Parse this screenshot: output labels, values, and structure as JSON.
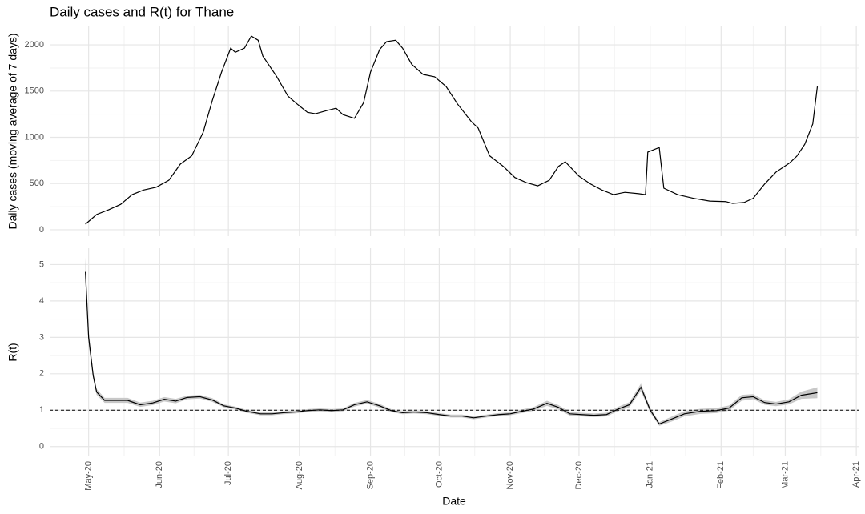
{
  "chart_data": [
    {
      "type": "line",
      "title": "Daily cases and R(t) for Thane",
      "ylabel": "Daily cases (moving average of 7 days)",
      "color": "#000000",
      "grid": true,
      "x": [
        -1.4,
        3.5,
        8.7,
        14,
        19,
        24,
        29.5,
        35,
        40,
        45,
        50,
        54,
        58,
        62,
        64,
        68,
        71,
        74,
        76,
        82,
        87,
        91,
        95.5,
        99,
        104,
        108,
        111,
        116,
        120,
        123,
        127,
        130,
        134,
        137,
        141,
        146,
        151,
        156,
        161,
        167,
        170,
        175,
        181,
        186,
        191,
        196,
        201,
        205,
        208,
        214,
        219,
        224,
        229,
        234,
        240,
        243,
        244,
        249,
        251,
        257,
        264,
        271,
        278,
        281,
        286,
        290,
        295,
        300,
        306,
        309,
        312.5,
        316,
        318
      ],
      "values": [
        60,
        165,
        215,
        275,
        380,
        430,
        460,
        535,
        710,
        800,
        1055,
        1400,
        1705,
        1965,
        1920,
        1965,
        2095,
        2050,
        1880,
        1660,
        1445,
        1360,
        1270,
        1255,
        1290,
        1315,
        1245,
        1205,
        1375,
        1705,
        1950,
        2035,
        2050,
        1965,
        1790,
        1680,
        1655,
        1550,
        1360,
        1170,
        1100,
        800,
        685,
        565,
        510,
        475,
        535,
        685,
        735,
        580,
        495,
        430,
        380,
        405,
        390,
        380,
        840,
        890,
        450,
        380,
        340,
        310,
        305,
        285,
        295,
        340,
        495,
        625,
        725,
        795,
        925,
        1145,
        1550
      ],
      "xlim": [
        -17,
        336
      ],
      "xticks": [
        0,
        31,
        61,
        92,
        123,
        153,
        184,
        214,
        245,
        276,
        304,
        335
      ],
      "ylim": [
        -70,
        2200
      ],
      "yticks": [
        0,
        500,
        1000,
        1500,
        2000
      ]
    },
    {
      "type": "line",
      "ylabel": "R(t)",
      "xlabel": "Date",
      "color": "#000000",
      "band_color": "#c8c8c8",
      "grid": true,
      "hline": 1,
      "x": [
        -1.4,
        0,
        2,
        3.5,
        7,
        12,
        17,
        22.5,
        28,
        33,
        38,
        43,
        48.6,
        54,
        59,
        64,
        69,
        75,
        80,
        85,
        90,
        95.5,
        101,
        106,
        111,
        116,
        121.5,
        127,
        132,
        137,
        142,
        147.6,
        153,
        158,
        163,
        168,
        173.6,
        179,
        184,
        189,
        194,
        200,
        205,
        210,
        215,
        220.5,
        226,
        231,
        236,
        241,
        245,
        249,
        255,
        260,
        267,
        274,
        279.5,
        285,
        290,
        295,
        300,
        305.6,
        311,
        318
      ],
      "values": [
        4.8,
        3.0,
        1.95,
        1.5,
        1.27,
        1.27,
        1.27,
        1.15,
        1.2,
        1.3,
        1.25,
        1.35,
        1.37,
        1.28,
        1.12,
        1.06,
        0.97,
        0.9,
        0.9,
        0.93,
        0.95,
        0.99,
        1.01,
        0.99,
        1.01,
        1.15,
        1.23,
        1.12,
        0.99,
        0.93,
        0.95,
        0.93,
        0.88,
        0.84,
        0.84,
        0.79,
        0.84,
        0.88,
        0.9,
        0.97,
        1.03,
        1.19,
        1.08,
        0.9,
        0.88,
        0.86,
        0.88,
        1.03,
        1.15,
        1.63,
        1.01,
        0.62,
        0.77,
        0.9,
        0.97,
        0.99,
        1.06,
        1.34,
        1.37,
        1.21,
        1.17,
        1.23,
        1.41,
        1.48
      ],
      "lower": [
        4.5,
        2.8,
        1.85,
        1.42,
        1.2,
        1.2,
        1.2,
        1.09,
        1.14,
        1.24,
        1.19,
        1.3,
        1.32,
        1.23,
        1.08,
        1.02,
        0.93,
        0.86,
        0.86,
        0.89,
        0.91,
        0.95,
        0.97,
        0.95,
        0.97,
        1.1,
        1.18,
        1.07,
        0.95,
        0.89,
        0.91,
        0.89,
        0.84,
        0.8,
        0.8,
        0.75,
        0.8,
        0.84,
        0.86,
        0.92,
        0.98,
        1.12,
        1.02,
        0.85,
        0.83,
        0.81,
        0.83,
        0.97,
        1.08,
        1.53,
        0.94,
        0.57,
        0.7,
        0.83,
        0.9,
        0.92,
        0.99,
        1.26,
        1.3,
        1.15,
        1.11,
        1.16,
        1.31,
        1.33
      ],
      "upper": [
        5.2,
        3.2,
        2.05,
        1.58,
        1.34,
        1.34,
        1.34,
        1.21,
        1.26,
        1.36,
        1.31,
        1.4,
        1.42,
        1.33,
        1.16,
        1.1,
        1.01,
        0.94,
        0.94,
        0.97,
        0.99,
        1.03,
        1.05,
        1.03,
        1.05,
        1.2,
        1.28,
        1.17,
        1.03,
        0.97,
        0.99,
        0.97,
        0.92,
        0.88,
        0.88,
        0.83,
        0.88,
        0.92,
        0.94,
        1.02,
        1.08,
        1.26,
        1.14,
        0.95,
        0.93,
        0.91,
        0.93,
        1.09,
        1.22,
        1.73,
        1.08,
        0.67,
        0.84,
        0.97,
        1.04,
        1.06,
        1.13,
        1.42,
        1.44,
        1.27,
        1.23,
        1.3,
        1.51,
        1.63
      ],
      "xlim": [
        -17,
        336
      ],
      "xticks": [
        {
          "value": 0,
          "label": "May-20"
        },
        {
          "value": 31,
          "label": "Jun-20"
        },
        {
          "value": 61,
          "label": "Jul-20"
        },
        {
          "value": 92,
          "label": "Aug-20"
        },
        {
          "value": 123,
          "label": "Sep-20"
        },
        {
          "value": 153,
          "label": "Oct-20"
        },
        {
          "value": 184,
          "label": "Nov-20"
        },
        {
          "value": 214,
          "label": "Dec-20"
        },
        {
          "value": 245,
          "label": "Jan-21"
        },
        {
          "value": 276,
          "label": "Feb-21"
        },
        {
          "value": 304,
          "label": "Mar-21"
        },
        {
          "value": 335,
          "label": "Apr-21"
        }
      ],
      "ylim": [
        -0.27,
        5.45
      ],
      "yticks": [
        0,
        1,
        2,
        3,
        4,
        5
      ]
    }
  ]
}
